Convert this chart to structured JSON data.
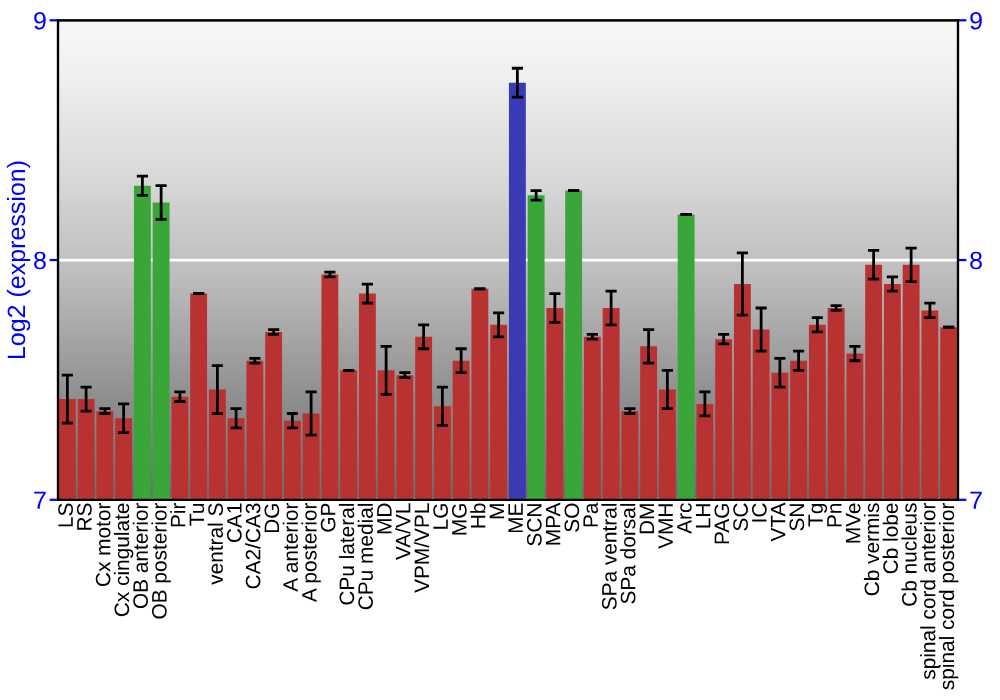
{
  "chart_data": {
    "type": "bar",
    "ylabel": "Log2 (expression)",
    "categories": [
      "LS",
      "RS",
      "Cx motor",
      "Cx cingulate",
      "OB anterior",
      "OB posterior",
      "Pir",
      "Tu",
      "ventral S",
      "CA1",
      "CA2/CA3",
      "DG",
      "A anterior",
      "A posterior",
      "GP",
      "CPu lateral",
      "CPu medial",
      "MD",
      "VA/VL",
      "VPM/VPL",
      "LG",
      "MG",
      "Hb",
      "M",
      "ME",
      "SCN",
      "MPA",
      "SO",
      "Pa",
      "SPa ventral",
      "SPa dorsal",
      "DM",
      "VMH",
      "Arc",
      "LH",
      "PAG",
      "SC",
      "IC",
      "VTA",
      "SN",
      "Tg",
      "Pn",
      "MVe",
      "Cb vermis",
      "Cb lobe",
      "Cb nucleus",
      "spinal cord anterior",
      "spinal cord posterior"
    ],
    "values": [
      7.42,
      7.42,
      7.37,
      7.34,
      8.31,
      8.24,
      7.43,
      7.86,
      7.46,
      7.34,
      7.58,
      7.7,
      7.33,
      7.36,
      7.94,
      7.54,
      7.86,
      7.54,
      7.52,
      7.68,
      7.39,
      7.58,
      7.88,
      7.73,
      8.74,
      8.27,
      7.8,
      8.29,
      7.68,
      7.8,
      7.37,
      7.64,
      7.46,
      8.19,
      7.4,
      7.67,
      7.9,
      7.71,
      7.53,
      7.58,
      7.73,
      7.8,
      7.61,
      7.98,
      7.9,
      7.98,
      7.79,
      7.72
    ],
    "errors": [
      0.1,
      0.05,
      0.01,
      0.06,
      0.04,
      0.07,
      0.02,
      0,
      0.1,
      0.04,
      0.01,
      0.01,
      0.03,
      0.09,
      0.01,
      0,
      0.04,
      0.1,
      0.01,
      0.05,
      0.08,
      0.05,
      0,
      0.05,
      0.06,
      0.02,
      0.06,
      0,
      0.01,
      0.07,
      0.01,
      0.07,
      0.08,
      0,
      0.05,
      0.02,
      0.13,
      0.09,
      0.06,
      0.04,
      0.03,
      0.01,
      0.03,
      0.06,
      0.03,
      0.07,
      0.03,
      0
    ],
    "colors": [
      "#b83232",
      "#b83232",
      "#b83232",
      "#b83232",
      "#3aa63a",
      "#3aa63a",
      "#b83232",
      "#b83232",
      "#b83232",
      "#b83232",
      "#b83232",
      "#b83232",
      "#b83232",
      "#b83232",
      "#b83232",
      "#b83232",
      "#b83232",
      "#b83232",
      "#b83232",
      "#b83232",
      "#b83232",
      "#b83232",
      "#b83232",
      "#b83232",
      "#3a3ab4",
      "#3aa63a",
      "#b83232",
      "#3aa63a",
      "#b83232",
      "#b83232",
      "#b83232",
      "#b83232",
      "#b83232",
      "#3aa63a",
      "#b83232",
      "#b83232",
      "#b83232",
      "#b83232",
      "#b83232",
      "#b83232",
      "#b83232",
      "#b83232",
      "#b83232",
      "#b83232",
      "#b83232",
      "#b83232",
      "#b83232",
      "#b83232"
    ],
    "ylim": [
      7,
      9
    ],
    "yticks": [
      7,
      8,
      9
    ],
    "y2lim": [
      7,
      9
    ],
    "y2ticks": [
      7,
      8,
      9
    ],
    "grid": "y"
  }
}
